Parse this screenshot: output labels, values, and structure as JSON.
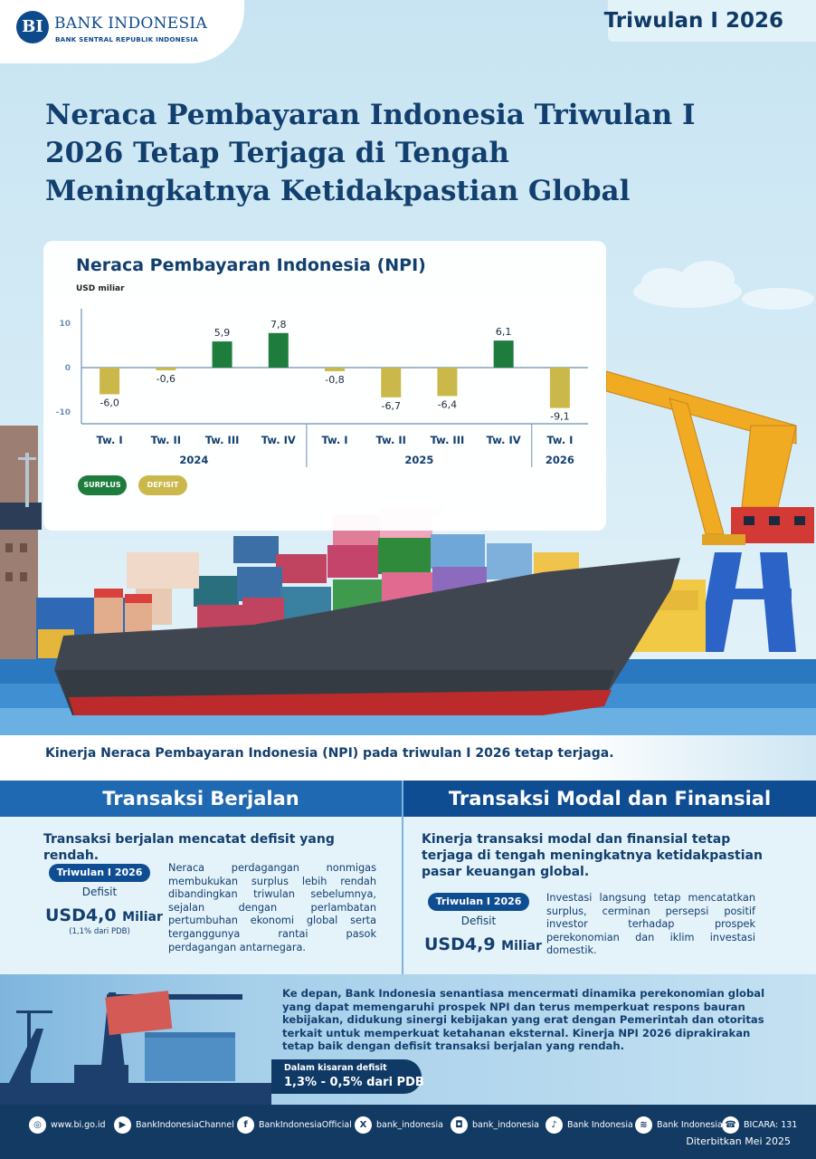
{
  "brand": {
    "logo_letters": "BI",
    "name": "BANK INDONESIA",
    "subtitle": "BANK SENTRAL REPUBLIK INDONESIA"
  },
  "period_badge": "Triwulan I 2026",
  "headline": "Neraca Pembayaran Indonesia Triwulan I 2026 Tetap Terjaga di Tengah Meningkatnya Ketidakpastian Global",
  "chart_data": {
    "type": "bar",
    "title": "Neraca Pembayaran Indonesia (NPI)",
    "ylabel": "USD miliar",
    "ylim": [
      -12,
      10
    ],
    "yticks": [
      10,
      0,
      -10
    ],
    "categories": [
      "Tw. I",
      "Tw. II",
      "Tw. III",
      "Tw. IV",
      "Tw. I",
      "Tw. II",
      "Tw. III",
      "Tw. IV",
      "Tw. I"
    ],
    "years": [
      {
        "label": "2024",
        "span": [
          0,
          3
        ]
      },
      {
        "label": "2025",
        "span": [
          4,
          7
        ]
      },
      {
        "label": "2026",
        "span": [
          8,
          8
        ]
      }
    ],
    "values": [
      -6.0,
      -0.6,
      5.9,
      7.8,
      -0.8,
      -6.7,
      -6.4,
      6.1,
      -9.1
    ],
    "value_labels": [
      "-6,0",
      "-0,6",
      "5,9",
      "7,8",
      "-0,8",
      "-6,7",
      "-6,4",
      "6,1",
      "-9,1"
    ],
    "legend": [
      {
        "name": "SURPLUS",
        "color": "#1e7d3d"
      },
      {
        "name": "DEFISIT",
        "color": "#cbb84a"
      }
    ],
    "grid": false
  },
  "intro": "Kinerja Neraca Pembayaran Indonesia (NPI) pada triwulan I 2026 tetap terjaga.",
  "current_account": {
    "heading": "Transaksi Berjalan",
    "lead": "Transaksi berjalan mencatat defisit yang rendah.",
    "period": "Triwulan I 2026",
    "kind": "Defisit",
    "value": "USD4,0",
    "unit": "Miliar",
    "note": "(1,1% dari PDB)",
    "body": "Neraca perdagangan nonmigas membukukan surplus lebih rendah dibandingkan triwulan sebelumnya, sejalan dengan perlambatan pertumbuhan ekonomi global serta terganggunya rantai pasok perdagangan antarnegara."
  },
  "capital_account": {
    "heading": "Transaksi Modal dan Finansial",
    "lead": "Kinerja transaksi modal dan finansial tetap terjaga di tengah meningkatnya ketidakpastian pasar keuangan global.",
    "period": "Triwulan I 2026",
    "kind": "Defisit",
    "value": "USD4,9",
    "unit": "Miliar",
    "body": "Investasi langsung tetap mencatatkan surplus, cerminan persepsi positif investor terhadap prospek perekonomian dan iklim investasi domestik."
  },
  "outlook": {
    "text": "Ke depan, Bank Indonesia senantiasa mencermati dinamika perekonomian global yang dapat memengaruhi prospek NPI dan terus memperkuat respons bauran kebijakan, didukung sinergi kebijakan yang erat dengan Pemerintah dan otoritas terkait untuk memperkuat ketahanan eksternal. Kinerja NPI 2026 diprakirakan tetap baik dengan defisit transaksi berjalan yang rendah.",
    "range_label": "Dalam kisaran defisit",
    "range_value": "1,3% - 0,5% dari PDB"
  },
  "footer": {
    "links": [
      {
        "icon": "globe-icon",
        "glyph": "◎",
        "label": "www.bi.go.id"
      },
      {
        "icon": "youtube-icon",
        "glyph": "▶",
        "label": "BankIndonesiaChannel"
      },
      {
        "icon": "facebook-icon",
        "glyph": "f",
        "label": "BankIndonesiaOfficial"
      },
      {
        "icon": "x-icon",
        "glyph": "X",
        "label": "bank_indonesia"
      },
      {
        "icon": "instagram-icon",
        "glyph": "◘",
        "label": "bank_indonesia"
      },
      {
        "icon": "tiktok-icon",
        "glyph": "♪",
        "label": "Bank Indonesia"
      },
      {
        "icon": "spotify-icon",
        "glyph": "≋",
        "label": "Bank Indonesia"
      },
      {
        "icon": "bicara-icon",
        "glyph": "☎",
        "label": "BICARA: 131"
      }
    ],
    "published": "Diterbitkan Mei 2025"
  }
}
